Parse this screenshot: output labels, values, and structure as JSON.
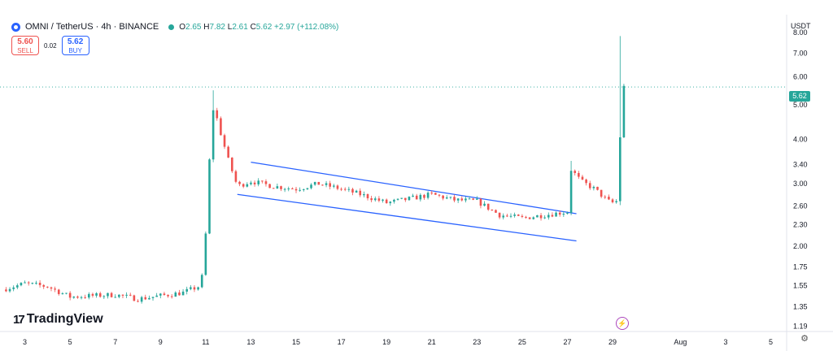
{
  "header": {
    "symbol": "OMNI / TetherUS · 4h · BINANCE",
    "o_label": "O",
    "o_value": "2.65",
    "h_label": "H",
    "h_value": "7.82",
    "l_label": "L",
    "l_value": "2.61",
    "c_label": "C",
    "c_value": "5.62",
    "change": "+2.97 (+112.08%)"
  },
  "trade": {
    "sell_price": "5.60",
    "sell_label": "SELL",
    "spread": "0.02",
    "buy_price": "5.62",
    "buy_label": "BUY"
  },
  "currency": "USDT",
  "brand": "TradingView",
  "last_price_tag": "5.62",
  "colors": {
    "up": "#26a69a",
    "down": "#ef5350",
    "channel": "#2962ff",
    "text": "#131722"
  },
  "icons": [
    "logo-icon",
    "live-status-icon",
    "lightning-icon",
    "gear-icon",
    "tradingview-logo-icon"
  ],
  "chart_data": {
    "type": "candlestick",
    "title": "OMNI / TetherUS · 4h · BINANCE",
    "y_scale": "log",
    "ylim": [
      1.15,
      8.8
    ],
    "y_ticks": [
      "8.00",
      "7.00",
      "6.00",
      "5.00",
      "4.00",
      "3.40",
      "3.00",
      "2.60",
      "2.30",
      "2.00",
      "1.75",
      "1.55",
      "1.35",
      "1.19"
    ],
    "x_ticks": [
      "3",
      "5",
      "7",
      "9",
      "11",
      "13",
      "15",
      "17",
      "19",
      "21",
      "23",
      "25",
      "27",
      "29",
      "Aug",
      "3",
      "5"
    ],
    "x_tick_days": [
      3,
      5,
      7,
      9,
      11,
      13,
      15,
      17,
      19,
      21,
      23,
      25,
      27,
      29,
      32,
      34,
      36
    ],
    "xlim_days": [
      1.9,
      36.7
    ],
    "last_price": 5.62,
    "key_points": [
      [
        2,
        1.51
      ],
      [
        3,
        1.57
      ],
      [
        4,
        1.54
      ],
      [
        5,
        1.44
      ],
      [
        6,
        1.45
      ],
      [
        7,
        1.46
      ],
      [
        8,
        1.42
      ],
      [
        9,
        1.45
      ],
      [
        10,
        1.48
      ],
      [
        10.8,
        1.55
      ],
      [
        11.05,
        2.35
      ],
      [
        11.2,
        3.9
      ],
      [
        11.35,
        5.0
      ],
      [
        11.6,
        4.3
      ],
      [
        12,
        3.5
      ],
      [
        12.4,
        2.95
      ],
      [
        13,
        3.05
      ],
      [
        14,
        2.95
      ],
      [
        15,
        2.9
      ],
      [
        16,
        3.0
      ],
      [
        17,
        2.9
      ],
      [
        18,
        2.78
      ],
      [
        19,
        2.65
      ],
      [
        20,
        2.72
      ],
      [
        21,
        2.8
      ],
      [
        22,
        2.7
      ],
      [
        23,
        2.68
      ],
      [
        24,
        2.45
      ],
      [
        25,
        2.4
      ],
      [
        26,
        2.45
      ],
      [
        27,
        2.5
      ],
      [
        27.15,
        3.3
      ],
      [
        27.6,
        3.05
      ],
      [
        28.2,
        2.9
      ],
      [
        28.8,
        2.68
      ],
      [
        29.1,
        2.64
      ],
      [
        29.25,
        2.72
      ],
      [
        29.4,
        5.62
      ]
    ],
    "spikes": [
      {
        "day": 11.35,
        "high": 5.5,
        "low": 3.8
      },
      {
        "day": 27.15,
        "high": 3.48,
        "low": 2.5
      },
      {
        "day": 29.4,
        "high": 7.82,
        "low": 2.61
      }
    ],
    "channel": {
      "upper": {
        "from": [
          13,
          3.45
        ],
        "to": [
          27.4,
          2.47
        ]
      },
      "lower": {
        "from": [
          12.4,
          2.8
        ],
        "to": [
          27.4,
          2.07
        ]
      }
    }
  }
}
